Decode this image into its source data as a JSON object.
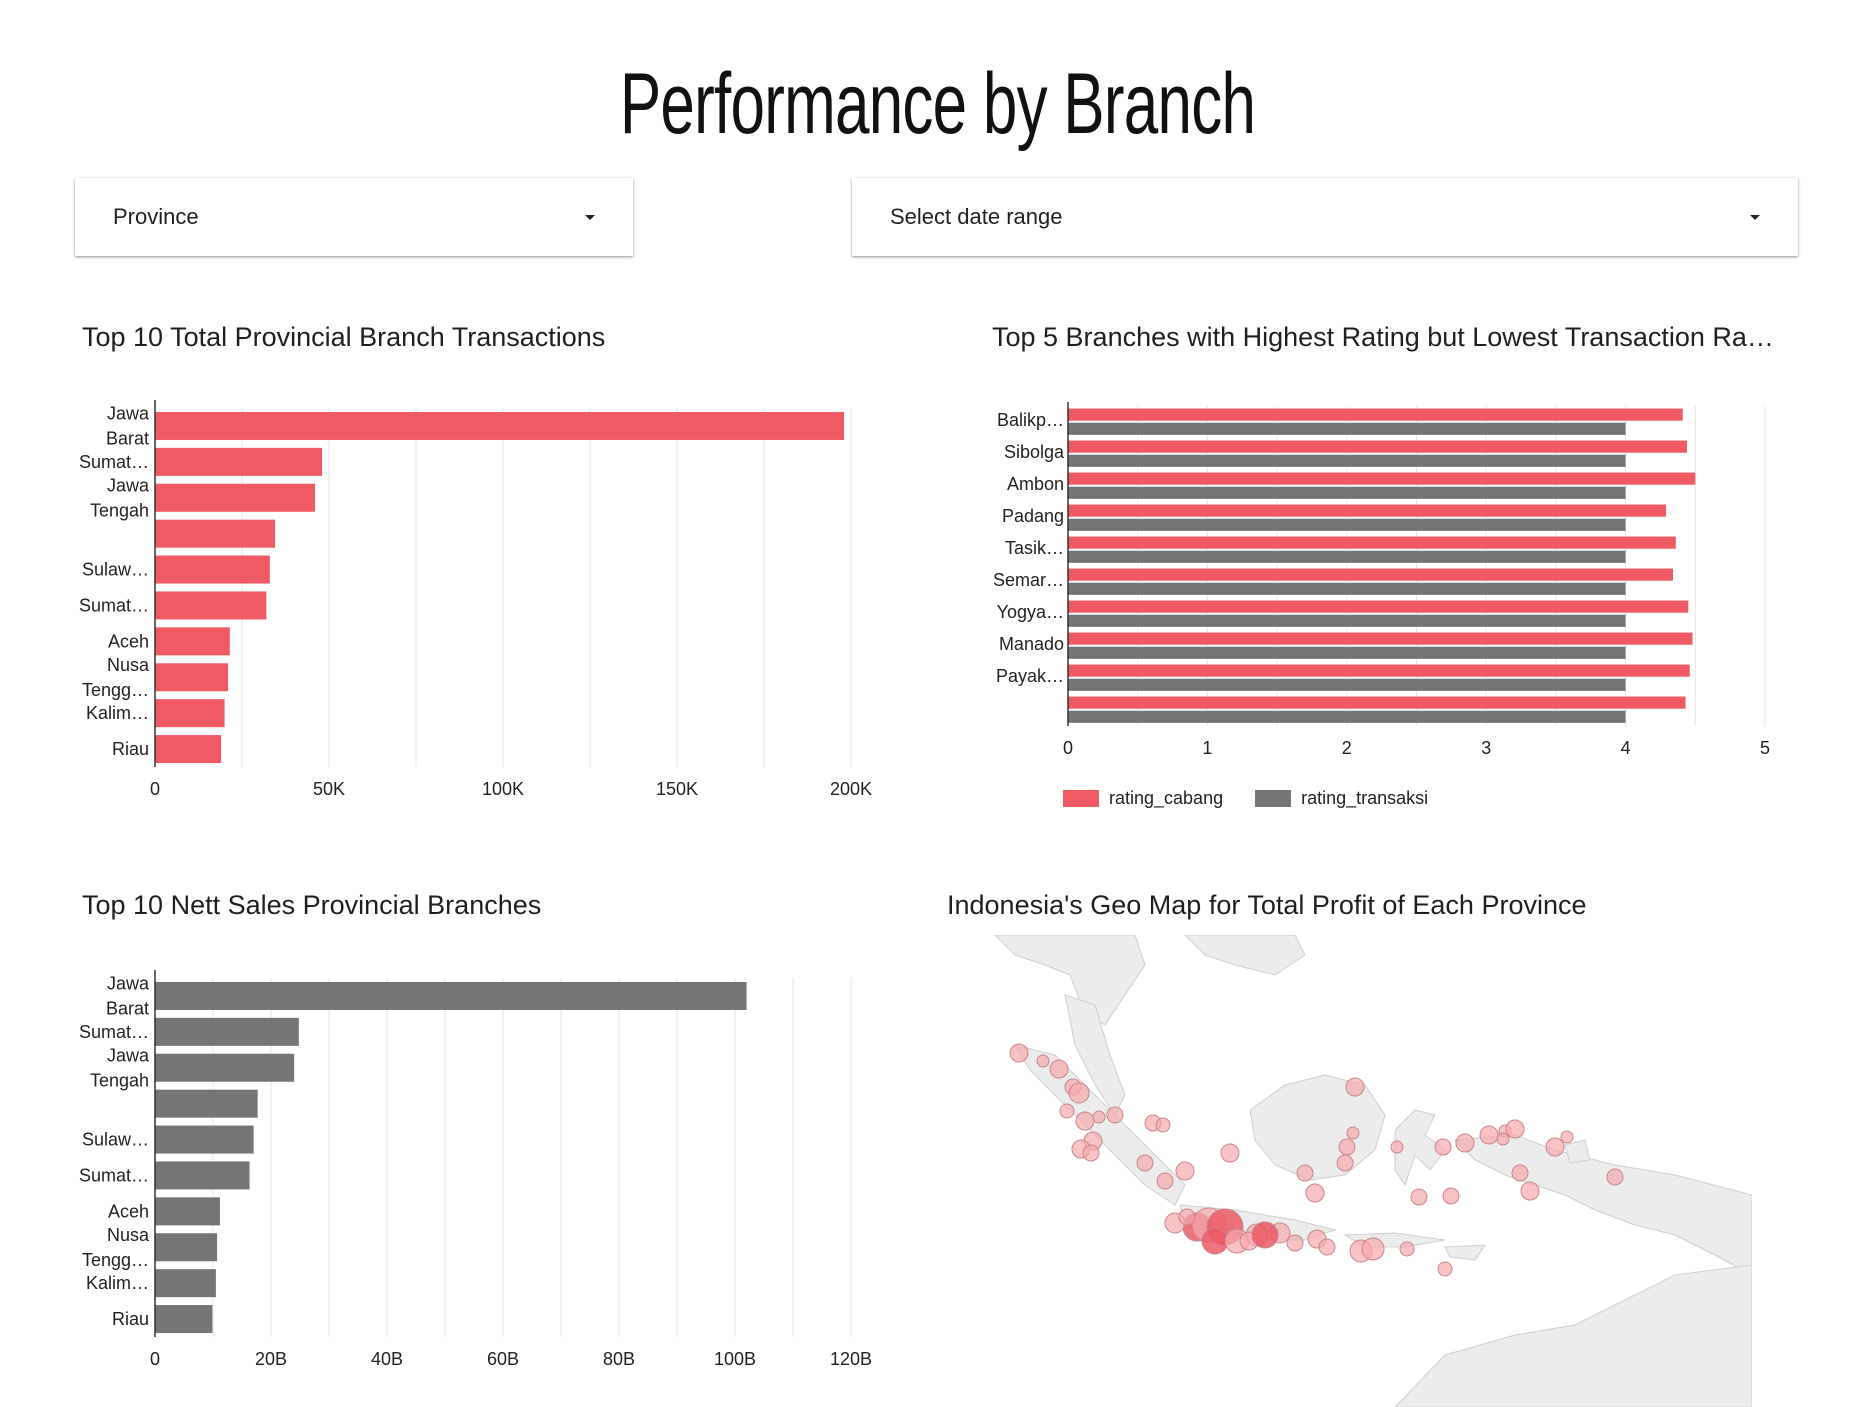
{
  "page_title": "Performance by Branch",
  "filters": {
    "province": {
      "label": "Province"
    },
    "date_range": {
      "label": "Select date range"
    }
  },
  "panels": {
    "transactions": {
      "title": "Top 10 Total Provincial Branch Transactions"
    },
    "rating": {
      "title": "Top 5 Branches with Highest Rating but Lowest Transaction Ra…"
    },
    "nett_sales": {
      "title": "Top 10 Nett Sales Provincial Branches"
    },
    "geo_map": {
      "title": "Indonesia's Geo Map for Total Profit of Each Province"
    }
  },
  "colors": {
    "red": "#f05a63",
    "gray": "#757575",
    "grid": "#e6e6e6",
    "land": "#ececec",
    "land_stroke": "#cfcfcf"
  },
  "chart_data": [
    {
      "type": "bar",
      "orientation": "horizontal",
      "categories": [
        "Jawa Barat",
        "Sumat…",
        "Jawa Tengah",
        "",
        "Sulaw…",
        "Sumat…",
        "Aceh",
        "Nusa Tengg…",
        "Kalim…",
        "Riau"
      ],
      "category_lines": [
        [
          "Jawa",
          "Barat"
        ],
        [
          "Sumat…"
        ],
        [
          "Jawa",
          "Tengah"
        ],
        [],
        [
          "Sulaw…"
        ],
        [
          "Sumat…"
        ],
        [
          "Aceh"
        ],
        [
          "Nusa",
          "Tengg…"
        ],
        [
          "Kalim…"
        ],
        [
          "Riau"
        ]
      ],
      "values": [
        198000,
        48000,
        46000,
        34500,
        33000,
        32000,
        21500,
        21000,
        20000,
        19000
      ],
      "xlim": [
        0,
        200000
      ],
      "xticks": [
        0,
        50000,
        100000,
        150000,
        200000
      ],
      "xtick_labels": [
        "0",
        "50K",
        "100K",
        "150K",
        "200K"
      ],
      "grid": true,
      "color": "#f05a63"
    },
    {
      "type": "bar",
      "orientation": "horizontal",
      "categories": [
        "Balikp…",
        "Sibolga",
        "Ambon",
        "Padang",
        "Tasik…",
        "Semar…",
        "Yogya…",
        "Manado",
        "Payak…",
        ""
      ],
      "series": [
        {
          "name": "rating_cabang",
          "color": "#f05a63",
          "values": [
            4.41,
            4.44,
            4.5,
            4.29,
            4.36,
            4.34,
            4.45,
            4.48,
            4.46,
            4.43
          ]
        },
        {
          "name": "rating_transaksi",
          "color": "#757575",
          "values": [
            4,
            4,
            4,
            4,
            4,
            4,
            4,
            4,
            4,
            4
          ]
        }
      ],
      "xlim": [
        0,
        5
      ],
      "xticks": [
        0,
        1,
        2,
        3,
        4,
        5
      ],
      "xtick_labels": [
        "0",
        "1",
        "2",
        "3",
        "4",
        "5"
      ],
      "grid": true,
      "legend": "bottom-left"
    },
    {
      "type": "bar",
      "orientation": "horizontal",
      "categories": [
        "Jawa Barat",
        "Sumat…",
        "Jawa Tengah",
        "",
        "Sulaw…",
        "Sumat…",
        "Aceh",
        "Nusa Tengg…",
        "Kalim…",
        "Riau"
      ],
      "category_lines": [
        [
          "Jawa",
          "Barat"
        ],
        [
          "Sumat…"
        ],
        [
          "Jawa",
          "Tengah"
        ],
        [],
        [
          "Sulaw…"
        ],
        [
          "Sumat…"
        ],
        [
          "Aceh"
        ],
        [
          "Nusa",
          "Tengg…"
        ],
        [
          "Kalim…"
        ],
        [
          "Riau"
        ]
      ],
      "values": [
        102000000000,
        24800000000,
        24000000000,
        17700000000,
        17000000000,
        16300000000,
        11200000000,
        10700000000,
        10500000000,
        9900000000
      ],
      "xlim": [
        0,
        120000000000
      ],
      "xticks": [
        0,
        20000000000,
        40000000000,
        60000000000,
        80000000000,
        100000000000,
        120000000000
      ],
      "xtick_labels": [
        "0",
        "20B",
        "40B",
        "60B",
        "80B",
        "100B",
        "120B"
      ],
      "grid": true,
      "color": "#757575"
    }
  ]
}
